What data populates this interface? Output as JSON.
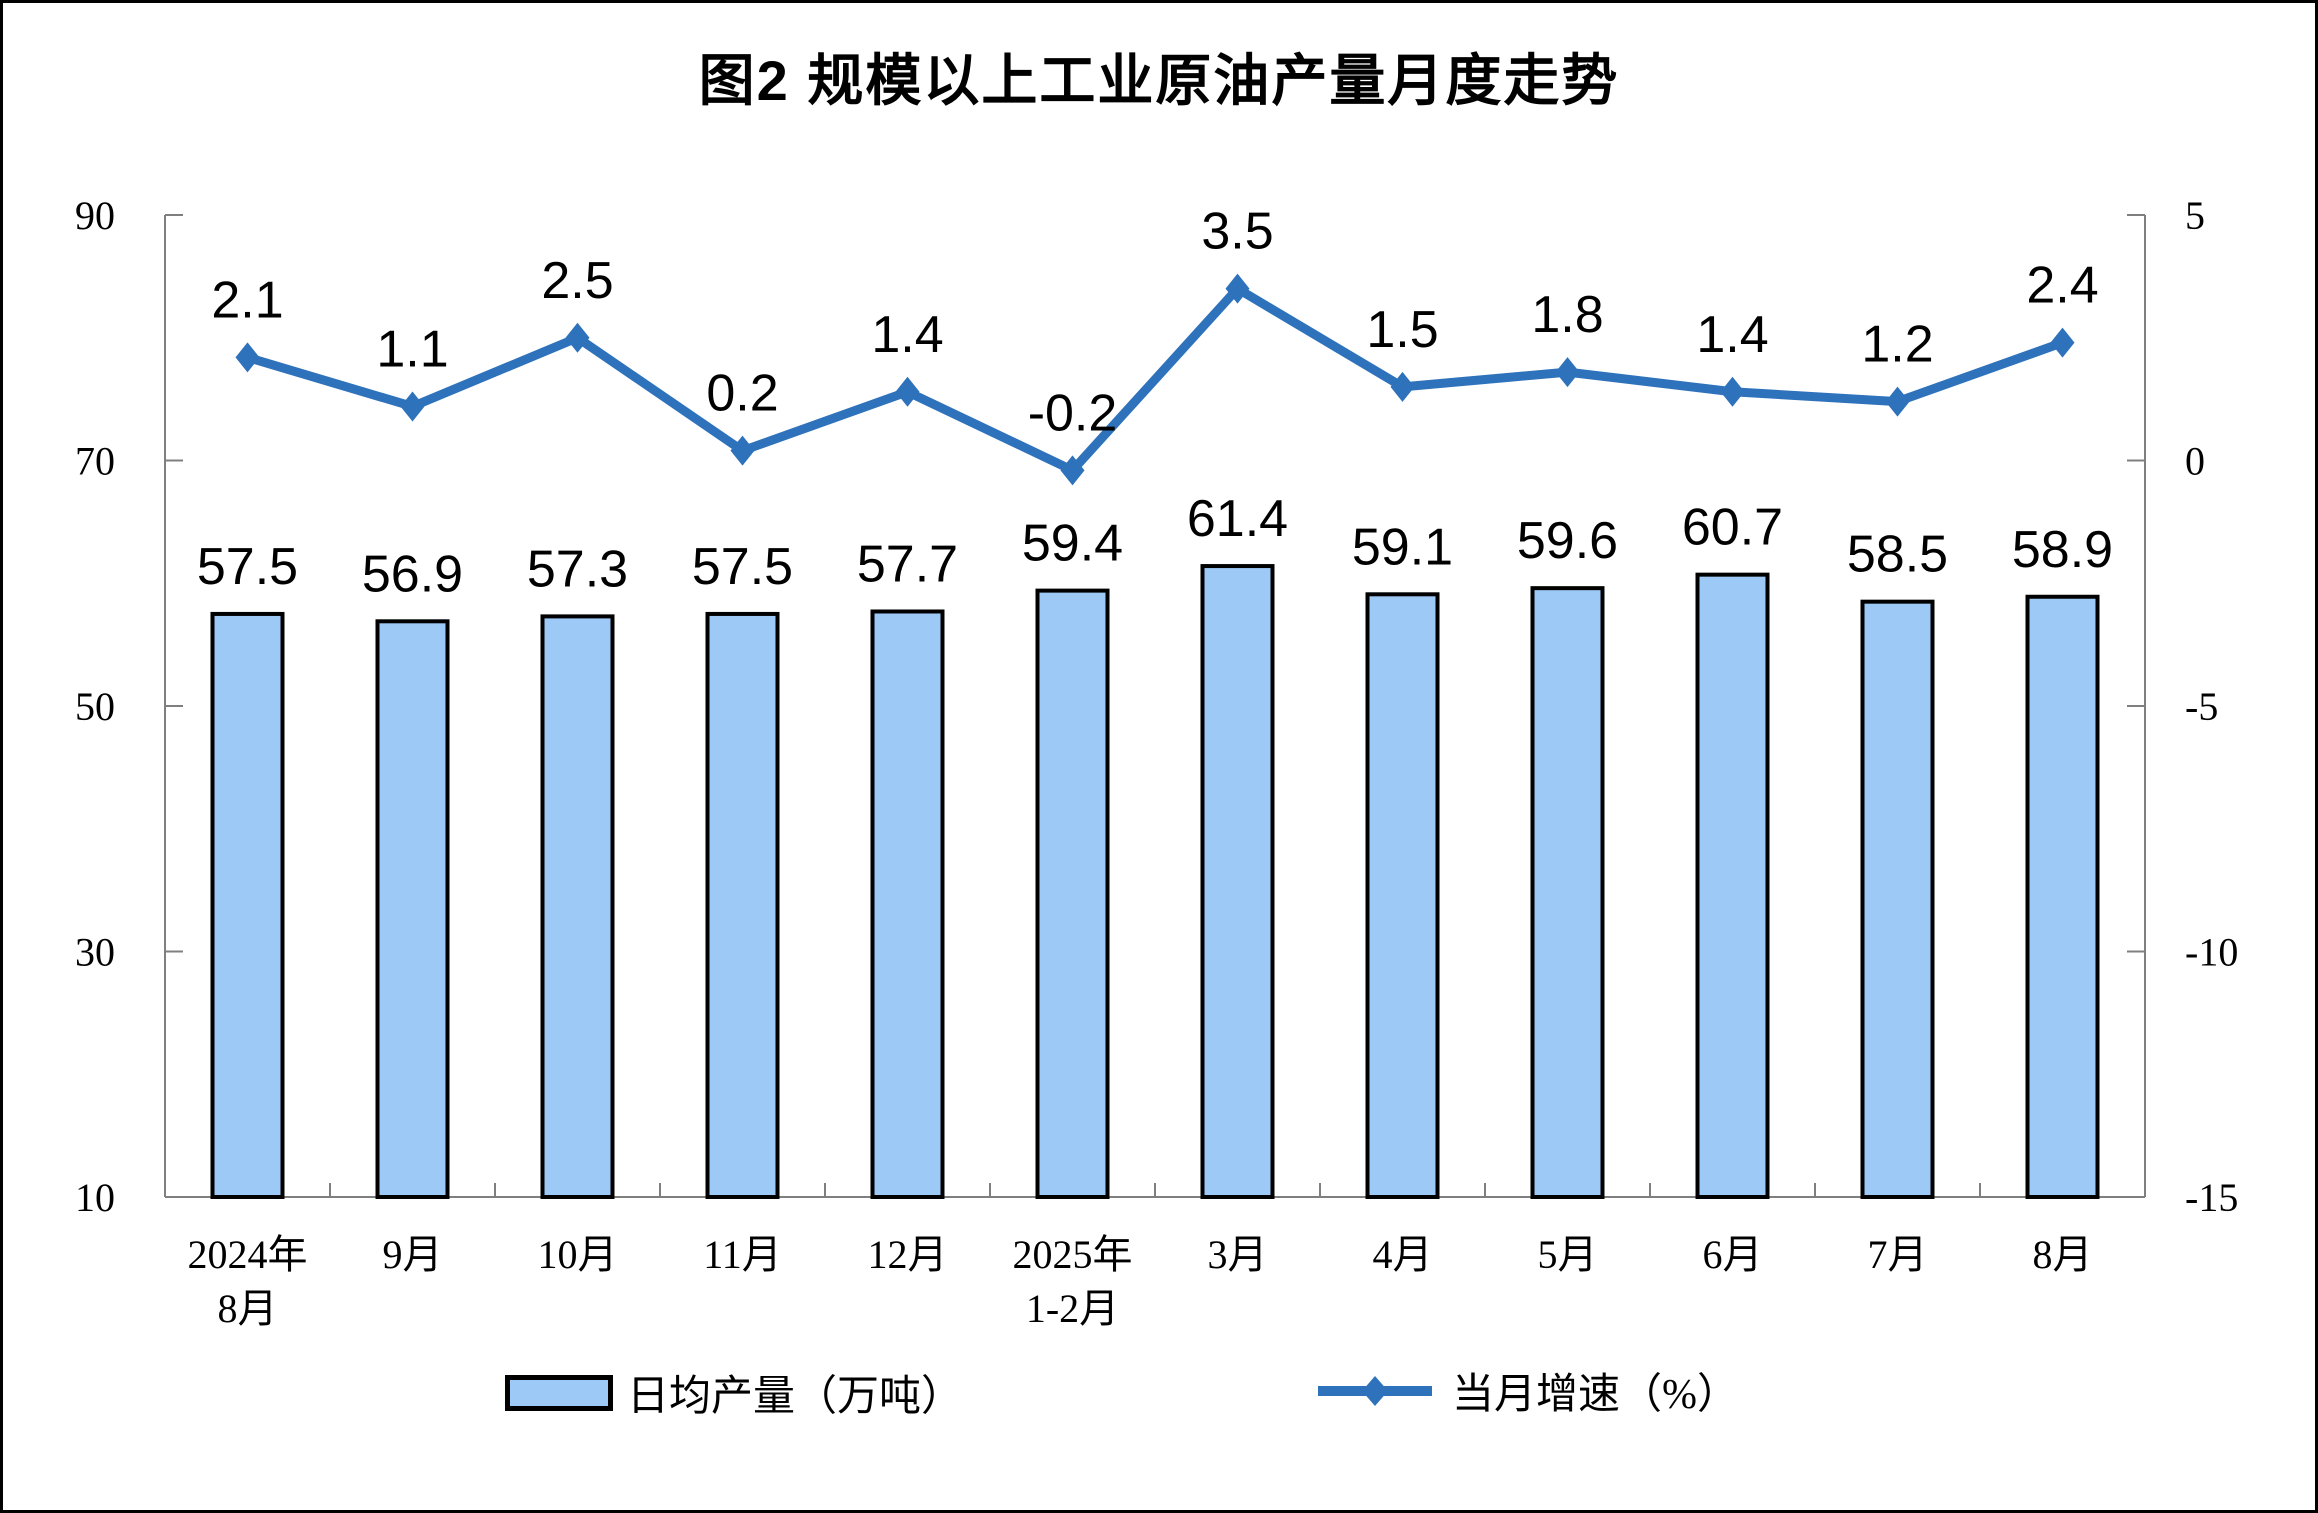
{
  "chart_data": {
    "type": "bar+line",
    "title": "图2 规模以上工业原油产量月度走势",
    "categories": [
      [
        "2024年",
        "8月"
      ],
      [
        "9月"
      ],
      [
        "10月"
      ],
      [
        "11月"
      ],
      [
        "12月"
      ],
      [
        "2025年",
        "1-2月"
      ],
      [
        "3月"
      ],
      [
        "4月"
      ],
      [
        "5月"
      ],
      [
        "6月"
      ],
      [
        "7月"
      ],
      [
        "8月"
      ]
    ],
    "series": [
      {
        "name": "日均产量（万吨）",
        "type": "bar",
        "axis": "left",
        "values": [
          57.5,
          56.9,
          57.3,
          57.5,
          57.7,
          59.4,
          61.4,
          59.1,
          59.6,
          60.7,
          58.5,
          58.9
        ]
      },
      {
        "name": "当月增速（%）",
        "type": "line",
        "axis": "right",
        "values": [
          2.1,
          1.1,
          2.5,
          0.2,
          1.4,
          -0.2,
          3.5,
          1.5,
          1.8,
          1.4,
          1.2,
          2.4
        ]
      }
    ],
    "left_axis": {
      "min": 10,
      "max": 90,
      "ticks": [
        90,
        70,
        50,
        30,
        10
      ]
    },
    "right_axis": {
      "min": -15,
      "max": 5,
      "ticks": [
        5,
        0,
        -5,
        -10,
        -15
      ]
    },
    "grid": false,
    "legend_position": "bottom",
    "colors": {
      "bar_fill": "#9DC9F7",
      "bar_border": "#000000",
      "line": "#2E72BC",
      "axis": "#7F7F7F",
      "text": "#000000",
      "background": "#FFFFFF"
    }
  }
}
